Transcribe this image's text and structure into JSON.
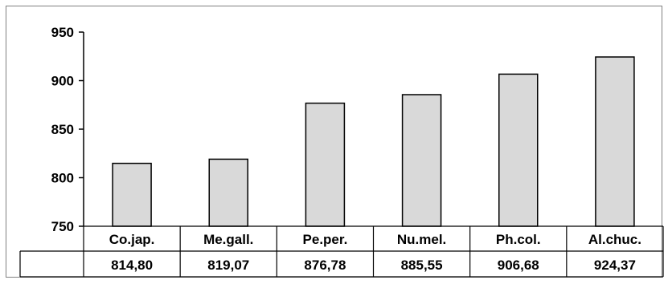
{
  "chart_data": {
    "type": "bar",
    "categories": [
      "Co.jap.",
      "Me.gall.",
      "Pe.per.",
      "Nu.mel.",
      "Ph.col.",
      "Al.chuc."
    ],
    "values": [
      814.8,
      819.07,
      876.78,
      885.55,
      906.68,
      924.37
    ],
    "value_labels": [
      "814,80",
      "819,07",
      "876,78",
      "885,55",
      "906,68",
      "924,37"
    ],
    "title": "",
    "xlabel": "",
    "ylabel": "",
    "ylim": [
      750,
      950
    ],
    "yticks": [
      750,
      800,
      850,
      900,
      950
    ],
    "grid": false,
    "legend": "none",
    "data_table": true,
    "colors": {
      "bar_fill": "#d9d9d9",
      "bar_stroke": "#000000",
      "axis": "#000000",
      "frame": "#808080"
    }
  }
}
